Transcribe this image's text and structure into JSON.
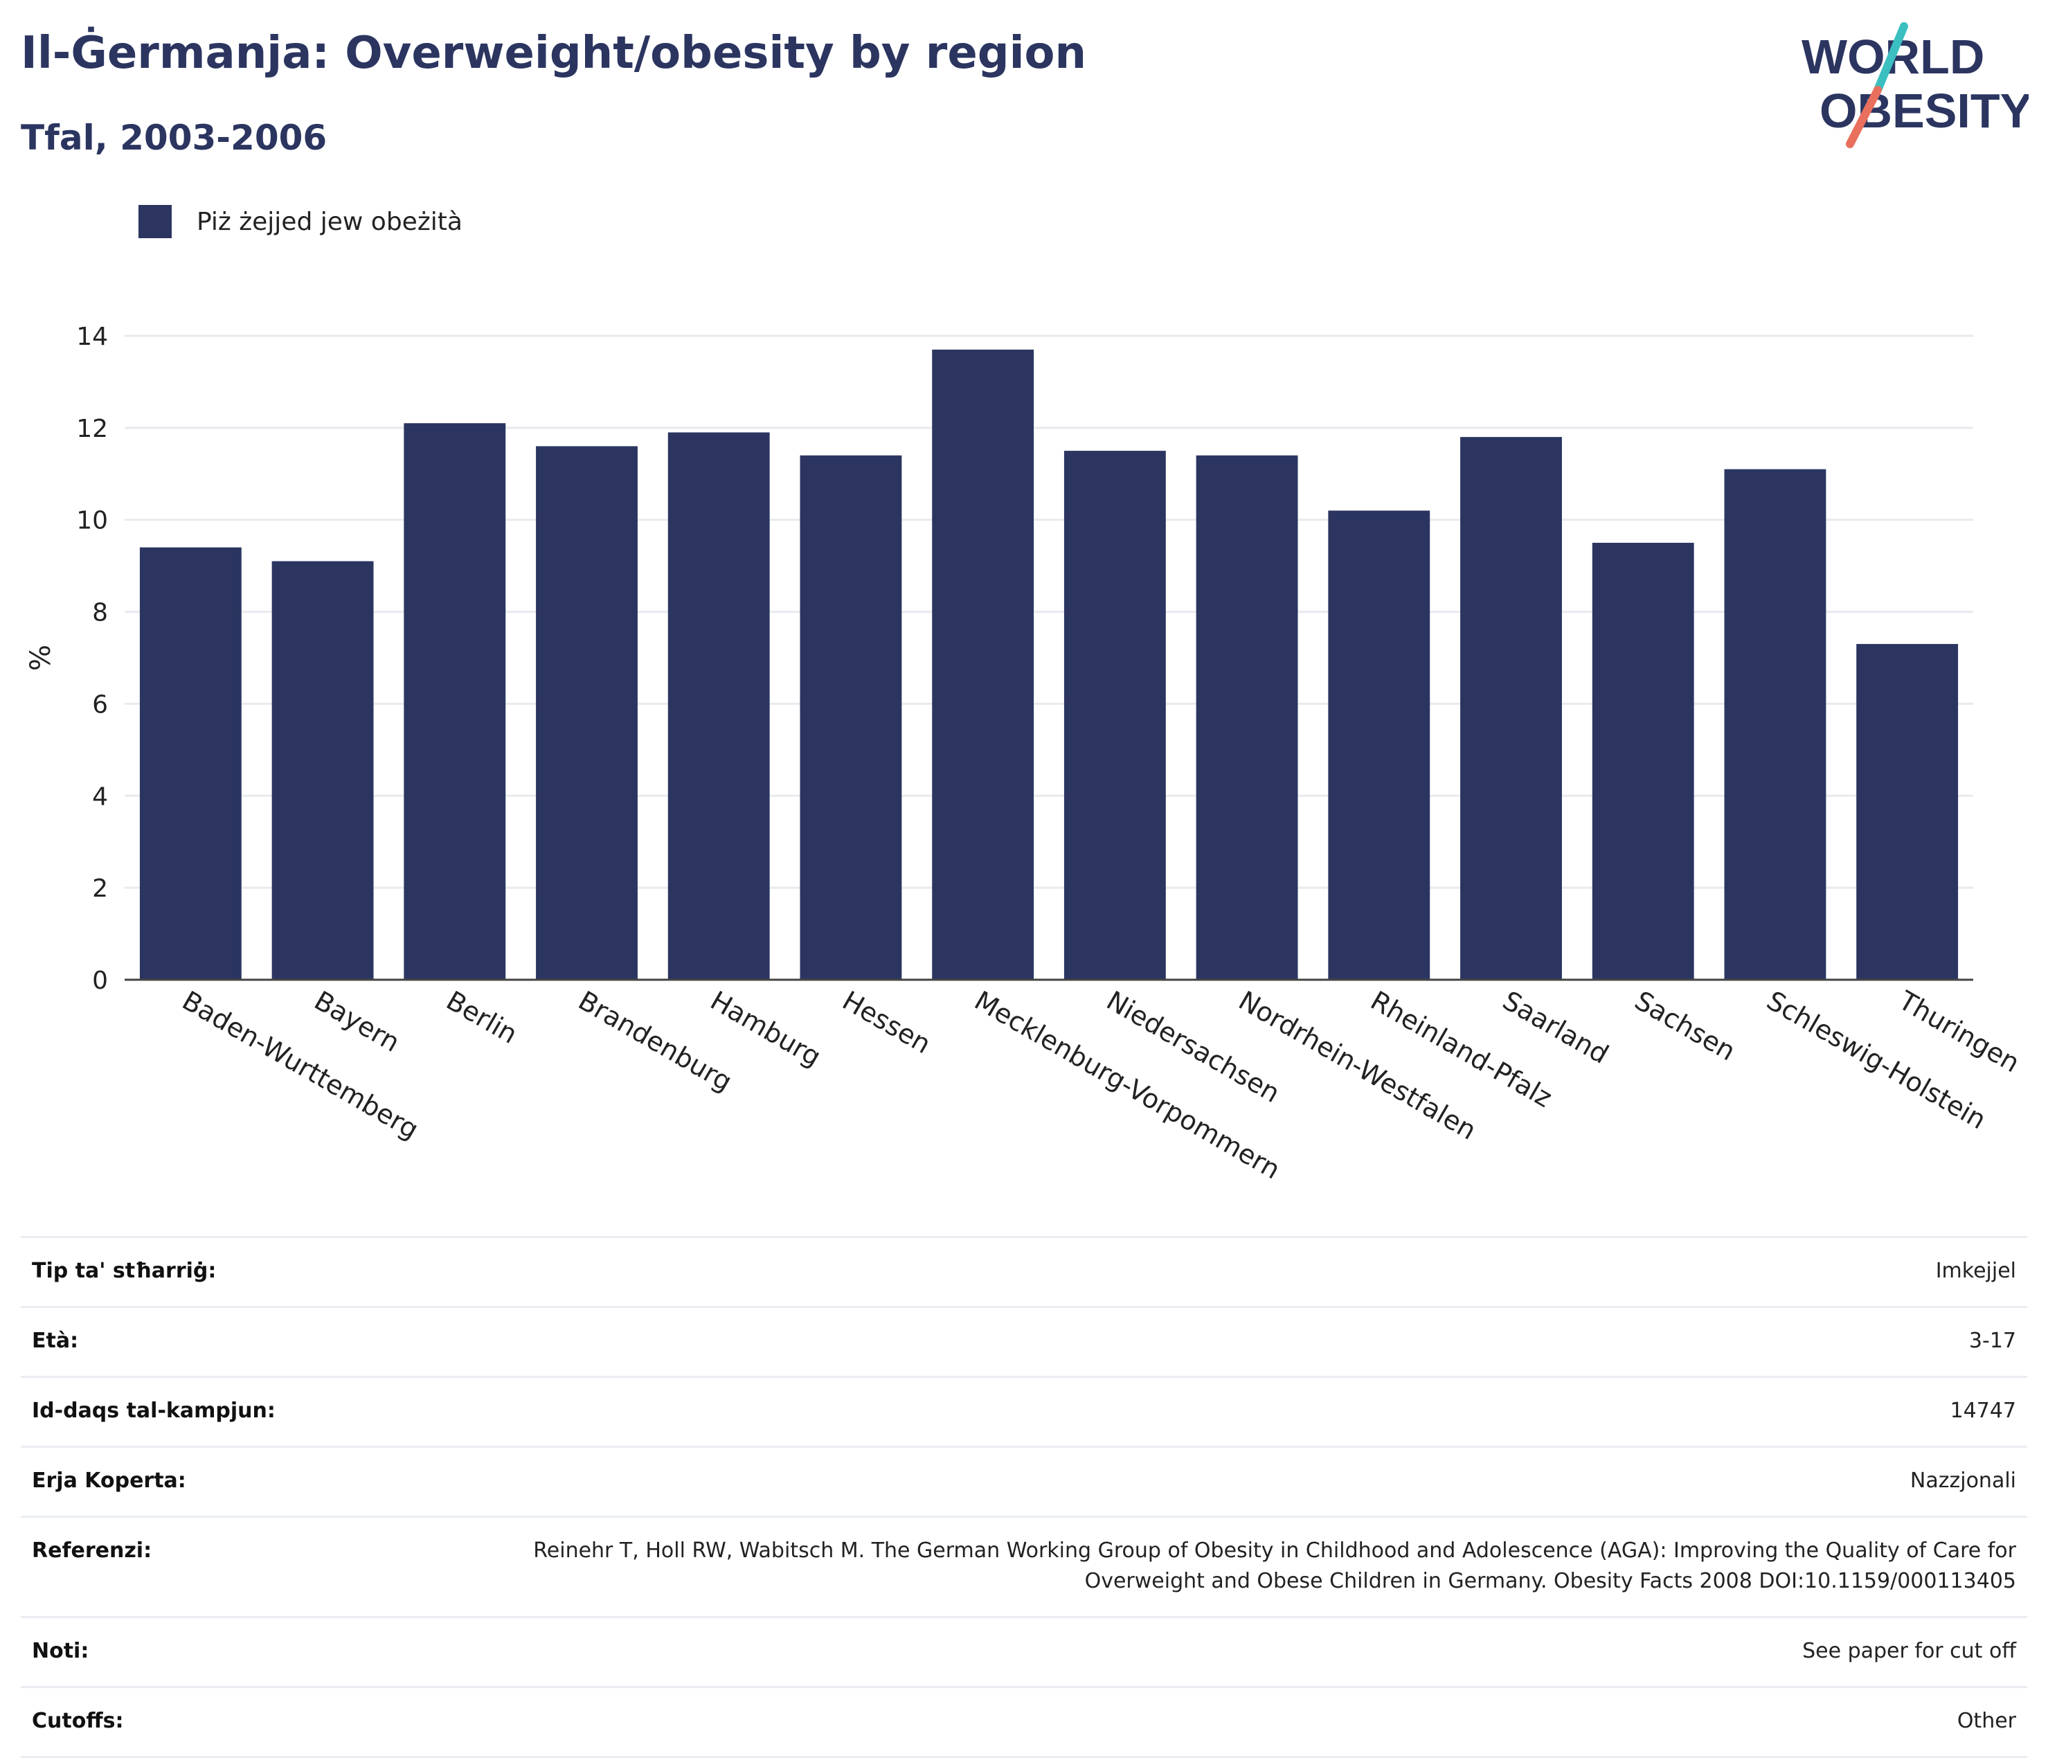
{
  "header": {
    "title": "Il-Ġermanja: Overweight/obesity by region",
    "subtitle": "Tfal, 2003-2006"
  },
  "logo": {
    "line1": "WORLD",
    "line2": "OBESITY"
  },
  "colors": {
    "bar": "#2b3560",
    "title": "#2b3560",
    "logo_teal": "#3bbfc0",
    "logo_coral": "#e8705d"
  },
  "chart_data": {
    "type": "bar",
    "categories": [
      "Baden-Wurttemberg",
      "Bayern",
      "Berlin",
      "Brandenburg",
      "Hamburg",
      "Hessen",
      "Mecklenburg-Vorpommern",
      "Niedersachsen",
      "Nordrhein-Westfalen",
      "Rheinland-Pfalz",
      "Saarland",
      "Sachsen",
      "Schleswig-Holstein",
      "Thuringen"
    ],
    "series": [
      {
        "name": "Piż żejjed jew obeżità",
        "values": [
          9.4,
          9.1,
          12.1,
          11.6,
          11.9,
          11.4,
          13.7,
          11.5,
          11.4,
          10.2,
          11.8,
          9.5,
          11.1,
          7.3
        ]
      }
    ],
    "ylabel": "%",
    "ylim": [
      0,
      14
    ],
    "yticks": [
      0,
      2,
      4,
      6,
      8,
      10,
      12,
      14
    ],
    "grid": true,
    "legend_position": "top-left"
  },
  "info": [
    {
      "label": "Tip ta' stħarriġ:",
      "value": "Imkejjel"
    },
    {
      "label": "Età:",
      "value": "3-17"
    },
    {
      "label": "Id-daqs tal-kampjun:",
      "value": "14747"
    },
    {
      "label": "Erja Koperta:",
      "value": "Nazzjonali"
    },
    {
      "label": "Referenzi:",
      "value": "Reinehr T, Holl RW, Wabitsch M. The German Working Group of Obesity in Childhood and Adolescence (AGA): Improving the Quality of Care for Overweight and Obese Children in Germany. Obesity Facts 2008 DOI:10.1159/000113405"
    },
    {
      "label": "Noti:",
      "value": "See paper for cut off"
    },
    {
      "label": "Cutoffs:",
      "value": "Other"
    }
  ]
}
